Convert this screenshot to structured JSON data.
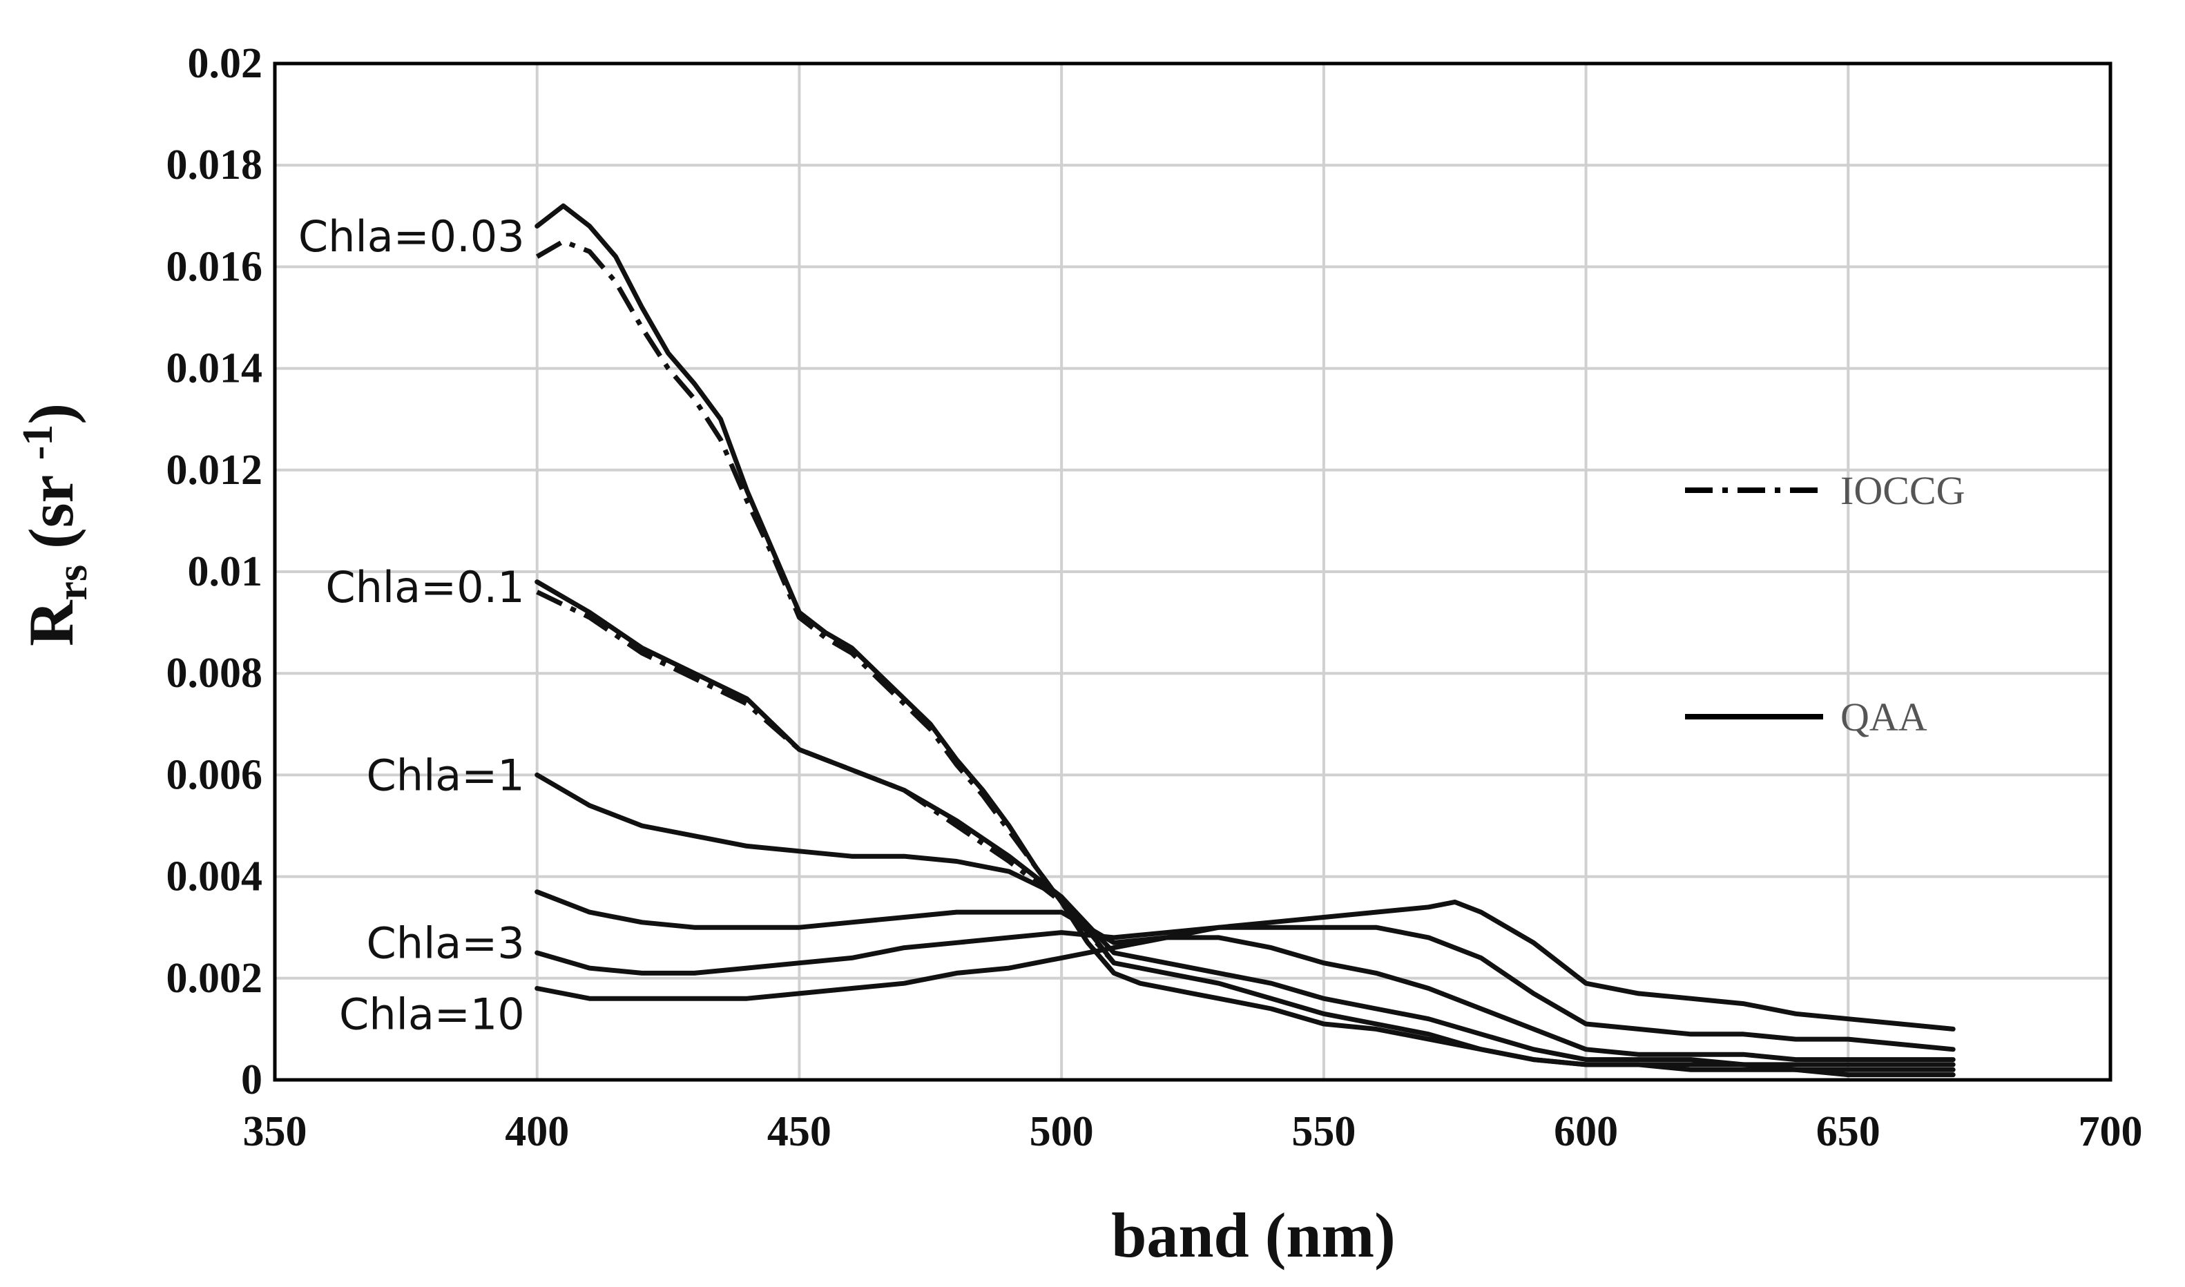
{
  "chart_data": {
    "type": "line",
    "xlabel": "band (nm)",
    "ylabel": {
      "main": "R",
      "sub": "rs",
      "unit_open": " (sr ",
      "unit_sup": "-1",
      "unit_close": ")"
    },
    "xlim": [
      350,
      700
    ],
    "ylim": [
      0,
      0.02
    ],
    "x_ticks": [
      "350",
      "400",
      "450",
      "500",
      "550",
      "600",
      "650",
      "700"
    ],
    "y_ticks": [
      "0",
      "0.002",
      "0.004",
      "0.006",
      "0.008",
      "0.01",
      "0.012",
      "0.014",
      "0.016",
      "0.018",
      "0.02"
    ],
    "grid": true,
    "legend": {
      "position": "right",
      "items": [
        {
          "label": "IOCCG",
          "style": "dash-dot"
        },
        {
          "label": "QAA",
          "style": "solid"
        }
      ]
    },
    "annotations": [
      {
        "text": "Chla=0.03",
        "x": 400,
        "y": 0.0166
      },
      {
        "text": "Chla=0.1",
        "x": 400,
        "y": 0.0097
      },
      {
        "text": "Chla=1",
        "x": 400,
        "y": 0.006
      },
      {
        "text": "Chla=3",
        "x": 400,
        "y": 0.0027
      },
      {
        "text": "Chla=10",
        "x": 400,
        "y": 0.0013
      }
    ],
    "series": [
      {
        "model": "QAA",
        "chla": "0.03",
        "x": [
          400,
          405,
          410,
          415,
          420,
          425,
          430,
          435,
          440,
          445,
          450,
          455,
          460,
          465,
          470,
          475,
          480,
          485,
          490,
          495,
          500,
          505,
          510,
          515,
          520,
          525,
          530,
          540,
          550,
          560,
          570,
          580,
          590,
          600,
          610,
          620,
          630,
          640,
          650,
          660,
          670
        ],
        "y": [
          0.0168,
          0.0172,
          0.0168,
          0.0162,
          0.0152,
          0.0143,
          0.0137,
          0.013,
          0.0116,
          0.0104,
          0.0092,
          0.0088,
          0.0085,
          0.008,
          0.0075,
          0.007,
          0.0063,
          0.0057,
          0.005,
          0.0042,
          0.0035,
          0.0027,
          0.0021,
          0.0019,
          0.0018,
          0.0017,
          0.0016,
          0.0014,
          0.0011,
          0.001,
          0.0008,
          0.0006,
          0.0004,
          0.0003,
          0.0003,
          0.0002,
          0.0002,
          0.0002,
          0.0001,
          0.0001,
          0.0001
        ]
      },
      {
        "model": "IOCCG",
        "chla": "0.03",
        "x": [
          400,
          405,
          410,
          415,
          420,
          425,
          430,
          435,
          440,
          445,
          450,
          455,
          460,
          465,
          470,
          475,
          480,
          485,
          490,
          495,
          500,
          505,
          510
        ],
        "y": [
          0.0162,
          0.0165,
          0.0163,
          0.0157,
          0.0148,
          0.014,
          0.0134,
          0.0126,
          0.0114,
          0.0103,
          0.0091,
          0.0087,
          0.0084,
          0.0079,
          0.0074,
          0.0069,
          0.0062,
          0.0056,
          0.0049,
          0.0042,
          0.0035,
          0.0027,
          0.0021
        ]
      },
      {
        "model": "QAA",
        "chla": "0.1",
        "x": [
          400,
          410,
          420,
          430,
          440,
          450,
          460,
          470,
          480,
          490,
          500,
          510,
          520,
          530,
          540,
          550,
          560,
          570,
          580,
          590,
          600,
          610,
          620,
          630,
          640,
          650,
          660,
          670
        ],
        "y": [
          0.0098,
          0.0092,
          0.0085,
          0.008,
          0.0075,
          0.0065,
          0.0061,
          0.0057,
          0.0051,
          0.0044,
          0.0036,
          0.0023,
          0.0021,
          0.0019,
          0.0016,
          0.0013,
          0.0011,
          0.0009,
          0.0006,
          0.0004,
          0.0003,
          0.0003,
          0.0003,
          0.0003,
          0.0002,
          0.0002,
          0.0002,
          0.0002
        ]
      },
      {
        "model": "IOCCG",
        "chla": "0.1",
        "x": [
          400,
          410,
          420,
          430,
          440,
          450,
          460,
          470,
          480,
          490,
          500,
          510
        ],
        "y": [
          0.0096,
          0.0091,
          0.0084,
          0.0079,
          0.0074,
          0.0065,
          0.0061,
          0.0057,
          0.005,
          0.0043,
          0.0035,
          0.0023
        ]
      },
      {
        "model": "QAA",
        "chla": "1",
        "x": [
          400,
          410,
          420,
          430,
          440,
          450,
          460,
          470,
          480,
          490,
          500,
          510,
          520,
          530,
          540,
          550,
          560,
          570,
          580,
          590,
          600,
          610,
          620,
          630,
          640,
          650,
          660,
          670
        ],
        "y": [
          0.006,
          0.0054,
          0.005,
          0.0048,
          0.0046,
          0.0045,
          0.0044,
          0.0044,
          0.0043,
          0.0041,
          0.0036,
          0.0025,
          0.0023,
          0.0021,
          0.0019,
          0.0016,
          0.0014,
          0.0012,
          0.0009,
          0.0006,
          0.0004,
          0.0004,
          0.0004,
          0.0003,
          0.0003,
          0.0003,
          0.0003,
          0.0003
        ]
      },
      {
        "model": "QAA",
        "chla": "3a",
        "x": [
          400,
          410,
          420,
          430,
          440,
          450,
          460,
          470,
          480,
          490,
          500,
          510,
          520,
          530,
          540,
          550,
          560,
          570,
          580,
          590,
          600,
          610,
          620,
          630,
          640,
          650,
          660,
          670
        ],
        "y": [
          0.0037,
          0.0033,
          0.0031,
          0.003,
          0.003,
          0.003,
          0.0031,
          0.0032,
          0.0033,
          0.0033,
          0.0033,
          0.0027,
          0.0028,
          0.0028,
          0.0026,
          0.0023,
          0.0021,
          0.0018,
          0.0014,
          0.001,
          0.0006,
          0.0005,
          0.0005,
          0.0005,
          0.0004,
          0.0004,
          0.0004,
          0.0004
        ]
      },
      {
        "model": "QAA",
        "chla": "3b",
        "x": [
          400,
          410,
          420,
          430,
          440,
          450,
          460,
          470,
          480,
          490,
          500,
          510,
          520,
          530,
          540,
          550,
          560,
          570,
          580,
          590,
          600,
          610,
          620,
          630,
          640,
          650,
          660,
          670
        ],
        "y": [
          0.0025,
          0.0022,
          0.0021,
          0.0021,
          0.0022,
          0.0023,
          0.0024,
          0.0026,
          0.0027,
          0.0028,
          0.0029,
          0.0028,
          0.0029,
          0.003,
          0.003,
          0.003,
          0.003,
          0.0028,
          0.0024,
          0.0017,
          0.0011,
          0.001,
          0.0009,
          0.0009,
          0.0008,
          0.0008,
          0.0007,
          0.0006
        ]
      },
      {
        "model": "QAA",
        "chla": "10",
        "x": [
          400,
          410,
          420,
          430,
          440,
          450,
          460,
          470,
          480,
          490,
          500,
          510,
          520,
          530,
          540,
          550,
          560,
          570,
          575,
          580,
          590,
          600,
          610,
          620,
          630,
          640,
          650,
          660,
          670
        ],
        "y": [
          0.0018,
          0.0016,
          0.0016,
          0.0016,
          0.0016,
          0.0017,
          0.0018,
          0.0019,
          0.0021,
          0.0022,
          0.0024,
          0.0026,
          0.0028,
          0.003,
          0.0031,
          0.0032,
          0.0033,
          0.0034,
          0.0035,
          0.0033,
          0.0027,
          0.0019,
          0.0017,
          0.0016,
          0.0015,
          0.0013,
          0.0012,
          0.0011,
          0.001
        ]
      }
    ]
  }
}
